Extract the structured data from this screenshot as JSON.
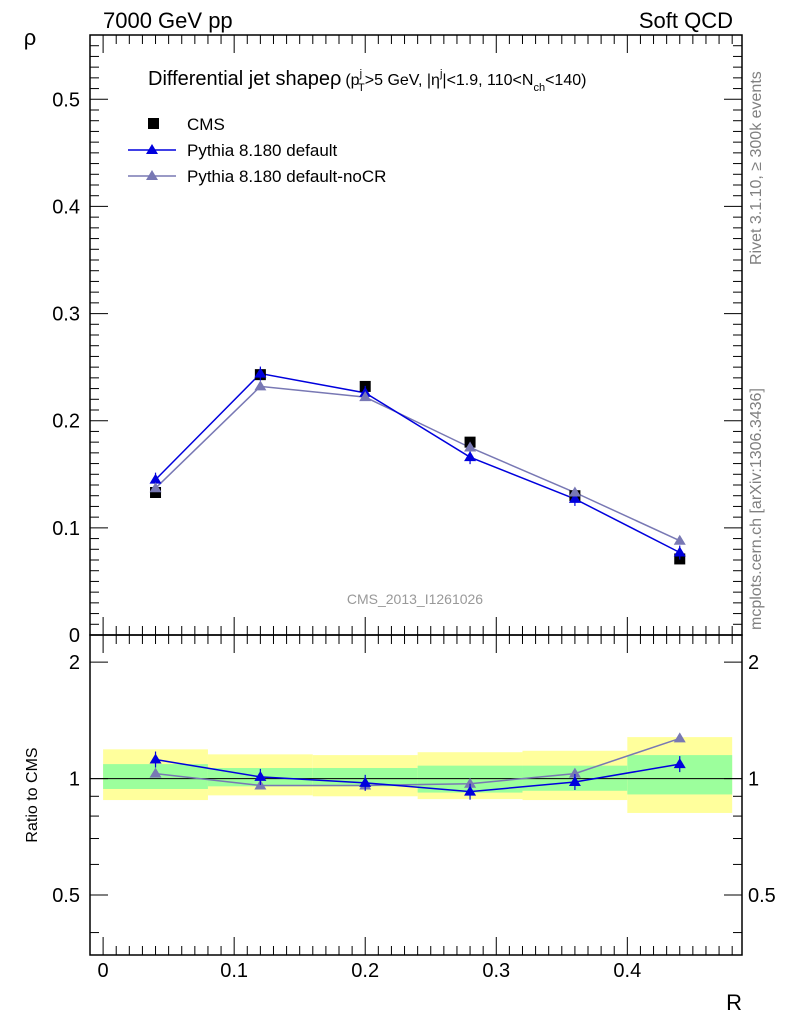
{
  "header": {
    "left": "7000 GeV pp",
    "right": "Soft QCD"
  },
  "side_labels": {
    "rivet": "Rivet 3.1.10, ≥ 300k events",
    "mcplots": "mcplots.cern.ch [arXiv:1306.3436]"
  },
  "watermark": "CMS_2013_I1261026",
  "plot_title": {
    "main": "Differential jet shapeρ",
    "detail": "(p_T^j>5 GeV, |η^j|<1.9, 110<N_ch<140)"
  },
  "colors": {
    "cms": "#000000",
    "pythia_default": "#0000dd",
    "pythia_nocr": "#7878b4",
    "band_inner": "#9cff9c",
    "band_outer": "#ffff9c"
  },
  "chart_data": [
    {
      "type": "scatter",
      "panel": "main",
      "xlabel": "",
      "ylabel": "ρ",
      "xlim": [
        -0.01,
        0.4875
      ],
      "ylim": [
        0,
        0.56
      ],
      "y_ticks": [
        "0",
        "0.1",
        "0.2",
        "0.3",
        "0.4",
        "0.5"
      ],
      "legend_position": "top-left",
      "x": [
        0.04,
        0.12,
        0.2,
        0.28,
        0.36,
        0.44
      ],
      "series": [
        {
          "name": "CMS",
          "marker": "square",
          "values": [
            0.133,
            0.243,
            0.232,
            0.18,
            0.13,
            0.071
          ]
        },
        {
          "name": "Pythia 8.180 default",
          "marker": "triangle",
          "values": [
            0.145,
            0.244,
            0.226,
            0.166,
            0.127,
            0.077
          ]
        },
        {
          "name": "Pythia 8.180 default-noCR",
          "marker": "triangle",
          "values": [
            0.137,
            0.232,
            0.222,
            0.175,
            0.133,
            0.088
          ]
        }
      ]
    },
    {
      "type": "line",
      "panel": "ratio",
      "xlabel": "R",
      "ylabel": "Ratio to CMS",
      "xlim": [
        -0.01,
        0.4875
      ],
      "ylim": [
        0.35,
        2.35
      ],
      "y_scale": "log",
      "x_ticks": [
        "0",
        "0.1",
        "0.2",
        "0.3",
        "0.4"
      ],
      "y_ticks": [
        "0.5",
        "1",
        "2"
      ],
      "x": [
        0.04,
        0.12,
        0.2,
        0.28,
        0.36,
        0.44
      ],
      "bins": [
        [
          0,
          0.08
        ],
        [
          0.08,
          0.16
        ],
        [
          0.16,
          0.24
        ],
        [
          0.24,
          0.32
        ],
        [
          0.32,
          0.4
        ],
        [
          0.4,
          0.48
        ]
      ],
      "band_inner": [
        [
          0.94,
          1.09
        ],
        [
          0.955,
          1.065
        ],
        [
          0.955,
          1.065
        ],
        [
          0.92,
          1.08
        ],
        [
          0.93,
          1.08
        ],
        [
          0.91,
          1.15
        ]
      ],
      "band_outer": [
        [
          0.88,
          1.19
        ],
        [
          0.905,
          1.155
        ],
        [
          0.9,
          1.15
        ],
        [
          0.885,
          1.17
        ],
        [
          0.88,
          1.18
        ],
        [
          0.815,
          1.28
        ]
      ],
      "series": [
        {
          "name": "Pythia 8.180 default",
          "values": [
            1.12,
            1.01,
            0.975,
            0.925,
            0.98,
            1.09
          ]
        },
        {
          "name": "Pythia 8.180 default-noCR",
          "values": [
            1.03,
            0.96,
            0.96,
            0.97,
            1.03,
            1.27
          ]
        }
      ]
    }
  ]
}
